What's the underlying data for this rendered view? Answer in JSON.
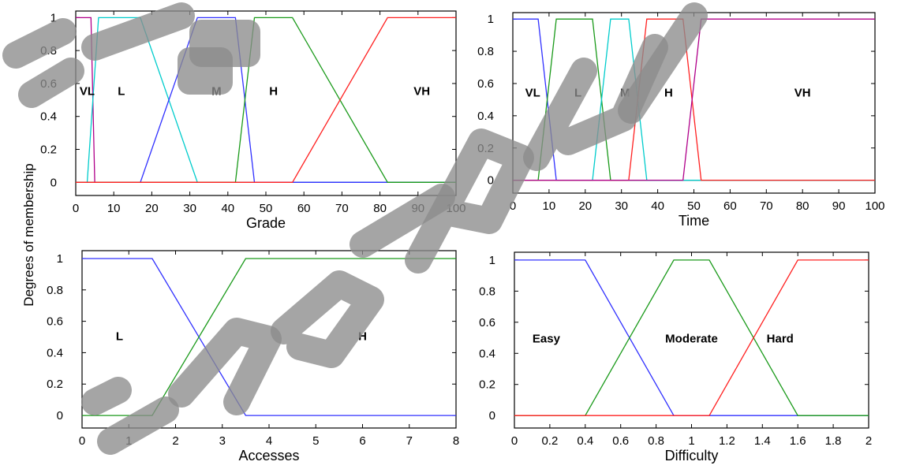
{
  "shared_ylabel": "Degrees of membership",
  "chart_data": [
    {
      "type": "line",
      "xlabel": "Grade",
      "ylabel": "",
      "xlim": [
        0,
        100
      ],
      "ylim": [
        -0.08,
        1.04
      ],
      "xticks": [
        "0",
        "10",
        "20",
        "30",
        "40",
        "50",
        "60",
        "70",
        "80",
        "90",
        "100"
      ],
      "yticks": [
        "0",
        "0.2",
        "0.4",
        "0.6",
        "0.8",
        "1"
      ],
      "series": [
        {
          "color": "#b0008a",
          "points": [
            [
              0,
              1
            ],
            [
              4,
              1
            ],
            [
              5,
              0
            ],
            [
              100,
              0
            ]
          ]
        },
        {
          "color": "#00cccc",
          "points": [
            [
              0,
              0
            ],
            [
              3,
              0
            ],
            [
              6,
              1
            ],
            [
              17,
              1
            ],
            [
              32,
              0
            ],
            [
              100,
              0
            ]
          ]
        },
        {
          "color": "#3030ff",
          "points": [
            [
              0,
              0
            ],
            [
              17,
              0
            ],
            [
              32,
              1
            ],
            [
              42,
              1
            ],
            [
              47,
              0
            ],
            [
              100,
              0
            ]
          ]
        },
        {
          "color": "#1a9a1a",
          "points": [
            [
              0,
              0
            ],
            [
              42,
              0
            ],
            [
              47,
              1
            ],
            [
              57,
              1
            ],
            [
              82,
              0
            ],
            [
              100,
              0
            ]
          ]
        },
        {
          "color": "#ff2020",
          "points": [
            [
              0,
              0
            ],
            [
              57,
              0
            ],
            [
              82,
              1
            ],
            [
              100,
              1
            ]
          ]
        }
      ],
      "annotations": [
        {
          "text": "VL",
          "x": 3,
          "y": 0.53
        },
        {
          "text": "L",
          "x": 12,
          "y": 0.53
        },
        {
          "text": "M",
          "x": 37,
          "y": 0.53
        },
        {
          "text": "H",
          "x": 52,
          "y": 0.53
        },
        {
          "text": "VH",
          "x": 91,
          "y": 0.53
        }
      ]
    },
    {
      "type": "line",
      "xlabel": "Time",
      "ylabel": "",
      "xlim": [
        0,
        100
      ],
      "ylim": [
        -0.08,
        1.04
      ],
      "xticks": [
        "0",
        "10",
        "20",
        "30",
        "40",
        "50",
        "60",
        "70",
        "80",
        "90",
        "100"
      ],
      "yticks": [
        "0",
        "0.2",
        "0.4",
        "0.6",
        "0.8",
        "1"
      ],
      "series": [
        {
          "color": "#3030ff",
          "points": [
            [
              0,
              1
            ],
            [
              7,
              1
            ],
            [
              12,
              0
            ],
            [
              100,
              0
            ]
          ]
        },
        {
          "color": "#1a9a1a",
          "points": [
            [
              0,
              0
            ],
            [
              7,
              0
            ],
            [
              12,
              1
            ],
            [
              22,
              1
            ],
            [
              27,
              0
            ],
            [
              100,
              0
            ]
          ]
        },
        {
          "color": "#00cccc",
          "points": [
            [
              0,
              0
            ],
            [
              22,
              0
            ],
            [
              27,
              1
            ],
            [
              32,
              1
            ],
            [
              37,
              0
            ],
            [
              100,
              0
            ]
          ]
        },
        {
          "color": "#ff2020",
          "points": [
            [
              0,
              0
            ],
            [
              32,
              0
            ],
            [
              37,
              1
            ],
            [
              47,
              1
            ],
            [
              52,
              0
            ],
            [
              100,
              0
            ]
          ]
        },
        {
          "color": "#b0008a",
          "points": [
            [
              0,
              0
            ],
            [
              47,
              0
            ],
            [
              52,
              1
            ],
            [
              100,
              1
            ]
          ]
        }
      ],
      "annotations": [
        {
          "text": "VL",
          "x": 5.5,
          "y": 0.52
        },
        {
          "text": "L",
          "x": 18,
          "y": 0.52
        },
        {
          "text": "M",
          "x": 31,
          "y": 0.52
        },
        {
          "text": "H",
          "x": 43,
          "y": 0.52
        },
        {
          "text": "VH",
          "x": 80,
          "y": 0.52
        }
      ]
    },
    {
      "type": "line",
      "xlabel": "Accesses",
      "ylabel": "",
      "xlim": [
        0,
        8
      ],
      "ylim": [
        -0.08,
        1.05
      ],
      "xticks": [
        "0",
        "1",
        "2",
        "3",
        "4",
        "5",
        "6",
        "7",
        "8"
      ],
      "yticks": [
        "0",
        "0.2",
        "0.4",
        "0.6",
        "0.8",
        "1"
      ],
      "series": [
        {
          "color": "#3030ff",
          "points": [
            [
              0,
              1
            ],
            [
              1.5,
              1
            ],
            [
              3.5,
              0
            ],
            [
              8,
              0
            ]
          ]
        },
        {
          "color": "#1a9a1a",
          "points": [
            [
              0,
              0
            ],
            [
              1.5,
              0
            ],
            [
              3.5,
              1
            ],
            [
              8,
              1
            ]
          ]
        }
      ],
      "annotations": [
        {
          "text": "L",
          "x": 0.8,
          "y": 0.48
        },
        {
          "text": "H",
          "x": 6,
          "y": 0.48
        }
      ]
    },
    {
      "type": "line",
      "xlabel": "Difficulty",
      "ylabel": "",
      "xlim": [
        0,
        2
      ],
      "ylim": [
        -0.08,
        1.05
      ],
      "xticks": [
        "0",
        "0.2",
        "0.4",
        "0.6",
        "0.8",
        "1",
        "1.2",
        "1.4",
        "1.6",
        "1.8",
        "2"
      ],
      "yticks": [
        "0",
        "0.2",
        "0.4",
        "0.6",
        "0.8",
        "1"
      ],
      "series": [
        {
          "color": "#3030ff",
          "points": [
            [
              0,
              1
            ],
            [
              0.4,
              1
            ],
            [
              0.9,
              0
            ],
            [
              2,
              0
            ]
          ]
        },
        {
          "color": "#1a9a1a",
          "points": [
            [
              0,
              0
            ],
            [
              0.4,
              0
            ],
            [
              0.9,
              1
            ],
            [
              1.1,
              1
            ],
            [
              1.6,
              0
            ],
            [
              2,
              0
            ]
          ]
        },
        {
          "color": "#ff2020",
          "points": [
            [
              0,
              0
            ],
            [
              1.1,
              0
            ],
            [
              1.6,
              1
            ],
            [
              2,
              1
            ]
          ]
        }
      ],
      "annotations": [
        {
          "text": "Easy",
          "x": 0.18,
          "y": 0.47
        },
        {
          "text": "Moderate",
          "x": 1.0,
          "y": 0.47
        },
        {
          "text": "Hard",
          "x": 1.5,
          "y": 0.47
        }
      ]
    }
  ]
}
